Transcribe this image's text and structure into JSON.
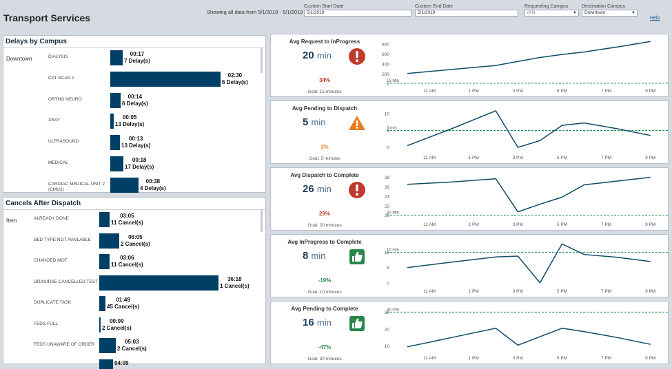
{
  "header": {
    "title": "Transport Services",
    "showing": "Showing all data from 5/1/2019 - 5/1/2019",
    "help": "Help"
  },
  "filters": {
    "start_label": "Custom Start Date",
    "start_value": "5/1/2019",
    "end_label": "Custom End Date",
    "end_value": "5/1/2019",
    "req_label": "Requesting Campus",
    "req_value": "(All)",
    "dest_label": "Destination Campus",
    "dest_value": "Downtown"
  },
  "delays": {
    "title": "Delays by Campus",
    "group": "Downtown",
    "rows": [
      {
        "label": "DIALYSIS",
        "time": "00:17",
        "count": "7 Delay(s)",
        "minutes": 17
      },
      {
        "label": "CAT SCAN 1",
        "time": "02:30",
        "count": "6 Delay(s)",
        "minutes": 150
      },
      {
        "label": "ORTHO NEURO",
        "time": "00:14",
        "count": "6 Delay(s)",
        "minutes": 14
      },
      {
        "label": "XRAY",
        "time": "00:05",
        "count": "13 Delay(s)",
        "minutes": 5
      },
      {
        "label": "ULTRASOUND",
        "time": "00:13",
        "count": "13 Delay(s)",
        "minutes": 13
      },
      {
        "label": "MEDICAL",
        "time": "00:18",
        "count": "17 Delay(s)",
        "minutes": 18
      },
      {
        "label": "CARDIAC MEDICAL UNIT 2 (CMU2)",
        "time": "00:38",
        "count": "4 Delay(s)",
        "minutes": 38
      }
    ]
  },
  "cancels": {
    "title": "Cancels After Dispatch",
    "group": "Item",
    "rows": [
      {
        "label": "ALREADY DONE",
        "time": "03:05",
        "count": "11 Cancel(s)",
        "minutes": 185
      },
      {
        "label": "BED TYPE NOT AVAILABLE",
        "time": "06:05",
        "count": "2 Cancel(s)",
        "minutes": 365
      },
      {
        "label": "CHANGED MOT",
        "time": "03:06",
        "count": "11 Cancel(s)",
        "minutes": 186
      },
      {
        "label": "DR/NURSE CANCELLED TEST",
        "time": "36:18",
        "count": "1 Cancel(s)",
        "minutes": 2178
      },
      {
        "label": "DUPLICATE TASK",
        "time": "01:49",
        "count": "45 Cancel(s)",
        "minutes": 109
      },
      {
        "label": "FEDS FULL",
        "time": "00:09",
        "count": "2 Cancel(s)",
        "minutes": 9
      },
      {
        "label": "FEDS UNAWARE OF ORDER",
        "time": "05:03",
        "count": "2 Cancel(s)",
        "minutes": 303
      },
      {
        "label": "",
        "time": "04:09",
        "count": "",
        "minutes": 249
      }
    ]
  },
  "kpis": [
    {
      "title": "Avg Request to InProgress",
      "value": "20",
      "unit": "min",
      "pct": "34%",
      "pct_color": "#c0392b",
      "goal_label": "Goal:",
      "goal_value": "15 minutes",
      "icon": "alert-circle-icon",
      "chart": {
        "y_ticks": [
          0,
          200,
          400,
          600,
          800
        ],
        "y_min": 0,
        "y_max": 880,
        "goal": 15,
        "goal_text": "15 Min",
        "x": [
          10,
          12,
          14,
          15,
          16,
          17,
          18,
          19.5,
          21
        ],
        "y": [
          210,
          290,
          370,
          450,
          530,
          590,
          640,
          740,
          850
        ]
      }
    },
    {
      "title": "Avg Pending to Dispatch",
      "value": "5",
      "unit": "min",
      "pct": "3%",
      "pct_color": "#e67e22",
      "goal_label": "Goal:",
      "goal_value": "5 minutes",
      "icon": "warning-triangle-icon",
      "chart": {
        "y_ticks": [
          0,
          5,
          10
        ],
        "y_min": -1,
        "y_max": 12,
        "goal": 5,
        "goal_text": "5 min",
        "x": [
          10,
          12,
          14,
          15,
          16,
          17,
          18,
          19.5,
          21
        ],
        "y": [
          0.5,
          5.5,
          10.8,
          0,
          2,
          6.5,
          7.2,
          5.5,
          3.5
        ]
      }
    },
    {
      "title": "Avg Dispatch to Complete",
      "value": "26",
      "unit": "min",
      "pct": "29%",
      "pct_color": "#c0392b",
      "goal_label": "Goal:",
      "goal_value": "20 minutes",
      "icon": "alert-circle-icon",
      "chart": {
        "y_ticks": [
          20,
          22,
          24,
          26,
          28
        ],
        "y_min": 19.5,
        "y_max": 28.8,
        "goal": 20,
        "goal_text": "20 Min",
        "x": [
          10,
          12,
          14,
          15,
          16,
          17,
          18,
          19.5,
          21
        ],
        "y": [
          26.5,
          27,
          27.7,
          20.7,
          22.3,
          23.8,
          26.4,
          27.2,
          28
        ]
      }
    },
    {
      "title": "Avg InProgress to Complete",
      "value": "8",
      "unit": "min",
      "pct": "-19%",
      "pct_color": "#27864a",
      "goal_label": "Goal:",
      "goal_value": "10 minutes",
      "icon": "thumbs-up-icon",
      "chart": {
        "y_ticks": [
          0,
          5,
          10
        ],
        "y_min": -0.5,
        "y_max": 14,
        "goal": 10,
        "goal_text": "10 min",
        "x": [
          10,
          12,
          14,
          15,
          16,
          17,
          18,
          19.5,
          21
        ],
        "y": [
          5,
          6.8,
          8.5,
          8.8,
          0,
          12.8,
          9.3,
          8.4,
          7
        ]
      }
    },
    {
      "title": "Avg Pending to Complete",
      "value": "16",
      "unit": "min",
      "pct": "-47%",
      "pct_color": "#27864a",
      "goal_label": "Goal:",
      "goal_value": "30 minutes",
      "icon": "thumbs-up-icon",
      "chart": {
        "y_ticks": [
          10,
          20,
          30
        ],
        "y_min": 7,
        "y_max": 33,
        "goal": 30,
        "goal_text": "30 min",
        "x": [
          10,
          12,
          14,
          15,
          16,
          17,
          18,
          19.5,
          21
        ],
        "y": [
          9.5,
          15,
          20.5,
          10.5,
          15.5,
          20.5,
          18.5,
          15,
          11
        ]
      }
    }
  ],
  "x_axis_ticks": [
    {
      "label": "11 AM",
      "hour": 11
    },
    {
      "label": "1 PM",
      "hour": 13
    },
    {
      "label": "3 PM",
      "hour": 15
    },
    {
      "label": "5 PM",
      "hour": 17
    },
    {
      "label": "7 PM",
      "hour": 19
    },
    {
      "label": "9 PM",
      "hour": 21
    }
  ],
  "colors": {
    "line": "#0e4a66",
    "goal": "#1e8a4e",
    "bar": "#003f66",
    "alert": "#c0392b",
    "warn": "#e67e22",
    "good": "#27864a"
  }
}
